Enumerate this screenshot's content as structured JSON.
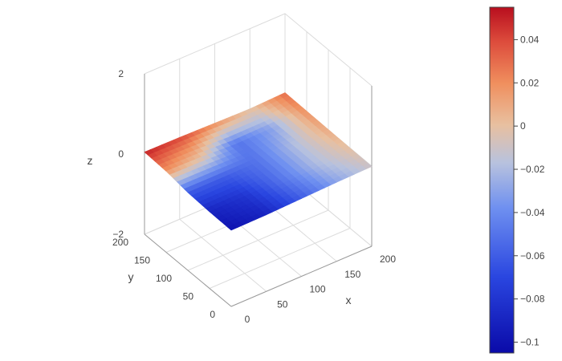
{
  "chart_data": {
    "type": "surface",
    "colorscale": "coolwarm",
    "axes": {
      "x": {
        "title": "x",
        "range": [
          0,
          200
        ],
        "ticks": [
          "0",
          "50",
          "100",
          "150",
          "200"
        ]
      },
      "y": {
        "title": "y",
        "range": [
          0,
          200
        ],
        "ticks": [
          "0",
          "50",
          "100",
          "150",
          "200"
        ]
      },
      "z": {
        "title": "z",
        "range": [
          -2,
          2
        ],
        "ticks": [
          "−2",
          "0",
          "2"
        ]
      }
    },
    "surface": {
      "x": [
        0,
        50,
        100,
        150,
        200
      ],
      "y": [
        0,
        50,
        100,
        150,
        200
      ],
      "z": [
        [
          -0.1,
          -0.09,
          -0.06,
          -0.03,
          -0.01
        ],
        [
          -0.09,
          -0.08,
          -0.05,
          -0.02,
          0.0
        ],
        [
          -0.06,
          -0.06,
          -0.05,
          -0.02,
          0.01
        ],
        [
          0.02,
          0.0,
          -0.05,
          -0.03,
          0.02
        ],
        [
          0.05,
          0.04,
          0.02,
          0.0,
          0.03
        ]
      ]
    },
    "colorbar": {
      "range": [
        -0.105,
        0.055
      ],
      "ticks": [
        "0.04",
        "0.02",
        "0",
        "−0.02",
        "−0.04",
        "−0.06",
        "−0.08",
        "−0.1"
      ],
      "tick_values": [
        0.04,
        0.02,
        0,
        -0.02,
        -0.04,
        -0.06,
        -0.08,
        -0.1
      ]
    }
  }
}
